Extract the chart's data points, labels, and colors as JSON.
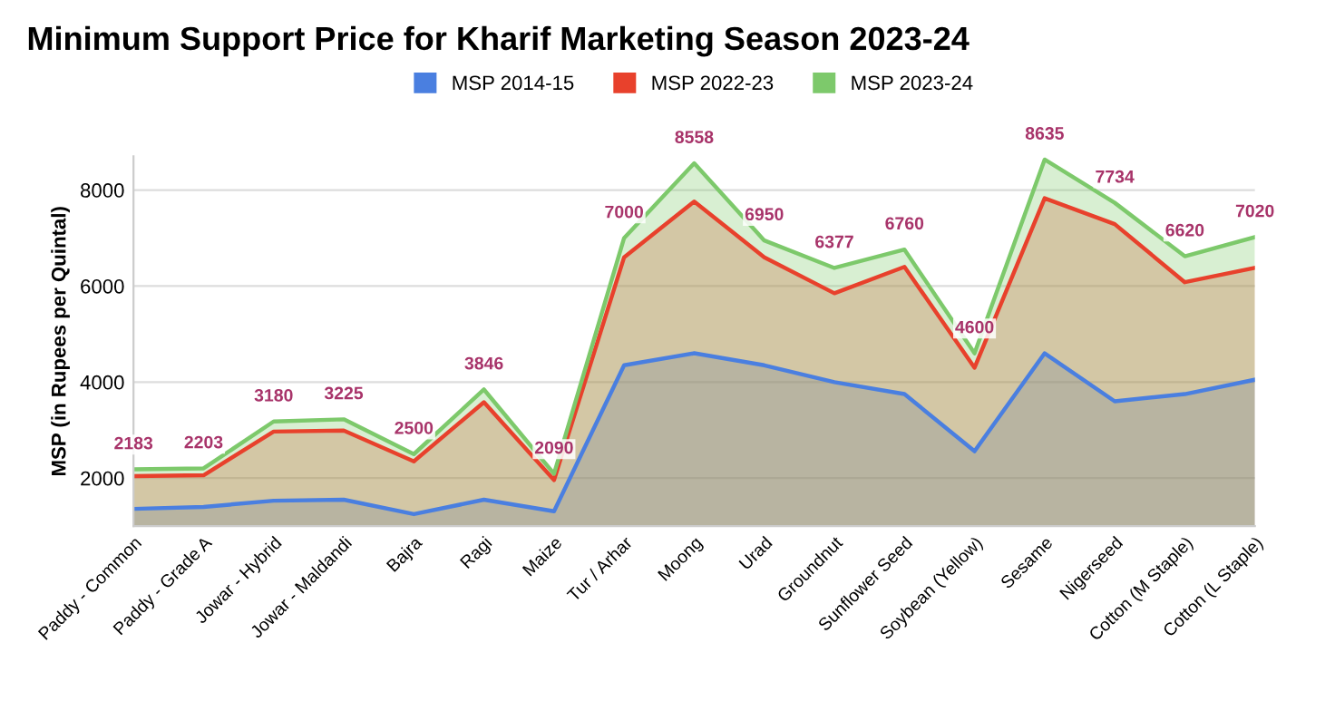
{
  "chart_data": {
    "type": "area",
    "title": "Minimum Support Price for Kharif Marketing Season 2023-24",
    "ylabel": "MSP (in Rupees per Quintal)",
    "categories": [
      "Paddy - Common",
      "Paddy - Grade A",
      "Jowar - Hybrid",
      "Jowar - Maldandi",
      "Bajra",
      "Ragi",
      "Maize",
      "Tur / Arhar",
      "Moong",
      "Urad",
      "Groundnut",
      "Sunflower Seed",
      "Soybean (Yellow)",
      "Sesame",
      "Nigerseed",
      "Cotton (M Staple)",
      "Cotton (L Staple)"
    ],
    "series": [
      {
        "name": "MSP 2014-15",
        "color": "#4a7fe0",
        "values": [
          1360,
          1400,
          1530,
          1550,
          1250,
          1550,
          1310,
          4350,
          4600,
          4350,
          4000,
          3750,
          2560,
          4600,
          3600,
          3750,
          4050
        ]
      },
      {
        "name": "MSP 2022-23",
        "color": "#e8412c",
        "values": [
          2040,
          2060,
          2970,
          2990,
          2350,
          3580,
          1960,
          6600,
          7760,
          6600,
          5850,
          6400,
          4300,
          7830,
          7290,
          6080,
          6380
        ]
      },
      {
        "name": "MSP 2023-24",
        "color": "#7dc96b",
        "values": [
          2183,
          2203,
          3180,
          3225,
          2500,
          3846,
          2090,
          7000,
          8558,
          6950,
          6377,
          6760,
          4600,
          8635,
          7734,
          6620,
          7020
        ],
        "value_labels": [
          "2183",
          "2203",
          "3180",
          "3225",
          "2500",
          "3846",
          "2090",
          "7000",
          "8558",
          "6950",
          "6377",
          "6760",
          "4600",
          "8635",
          "7734",
          "6620",
          "7020"
        ]
      }
    ],
    "ylim": [
      1000,
      8700
    ],
    "yticks": [
      2000,
      4000,
      6000,
      8000
    ],
    "grid": "y",
    "legend": "top"
  }
}
